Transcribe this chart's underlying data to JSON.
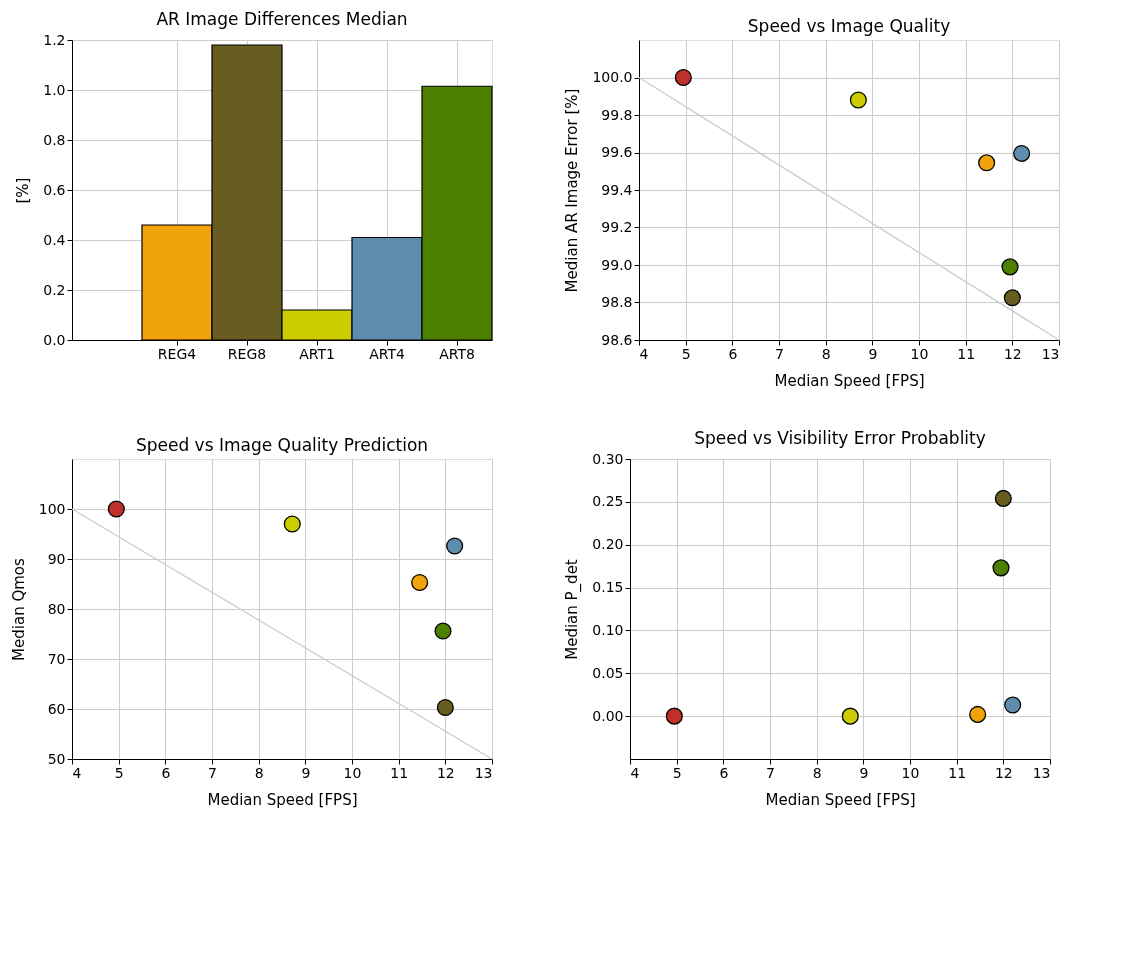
{
  "chart_data": [
    {
      "type": "bar",
      "title": "AR Image Differences Median",
      "ylabel": "[%]",
      "categories": [
        "REG4",
        "REG8",
        "ART1",
        "ART4",
        "ART8"
      ],
      "values": [
        0.46,
        1.18,
        0.12,
        0.41,
        1.015
      ],
      "colors": [
        "#f0a30a",
        "#675d21",
        "#cccc00",
        "#5e8cad",
        "#4e8000"
      ],
      "ylim": [
        0,
        1.2
      ],
      "yticks": [
        {
          "value": 0,
          "label": "0.0"
        },
        0.2,
        0.4,
        0.6,
        0.8,
        {
          "value": 1,
          "label": "1.0"
        },
        1.2
      ],
      "grid": true
    },
    {
      "type": "scatter",
      "title": "Speed vs Image Quality",
      "xlabel": "Median Speed [FPS]",
      "ylabel": "Median AR Image Error [%]",
      "xlim": [
        4,
        13
      ],
      "xticks": [
        4,
        5,
        6,
        7,
        8,
        9,
        10,
        11,
        12,
        13
      ],
      "ylim": [
        98.6,
        100.2
      ],
      "yticks": [
        98.6,
        98.8,
        {
          "value": 99,
          "label": "99.0"
        },
        99.2,
        99.4,
        99.6,
        99.8,
        {
          "value": 100,
          "label": "100.0"
        }
      ],
      "grid": true,
      "series": [
        {
          "type": "scatter",
          "marker": "circle",
          "x": [
            4.95,
            8.7,
            11.45,
            12.2,
            11.95,
            12.0
          ],
          "values": [
            100.0,
            99.88,
            99.545,
            99.595,
            98.99,
            98.825
          ],
          "colors": [
            "#c0302a",
            "#cccc00",
            "#f0a30a",
            "#5e8cad",
            "#4e8000",
            "#675d21"
          ]
        },
        {
          "type": "line",
          "marker": "none",
          "line_style": "solid",
          "x": [
            4,
            13
          ],
          "values": [
            100.0,
            98.6
          ],
          "color": "#cccccc"
        }
      ]
    },
    {
      "type": "scatter",
      "title": "Speed vs Image Quality Prediction",
      "xlabel": "Median Speed [FPS]",
      "ylabel": "Median Qmos",
      "xlim": [
        4,
        13
      ],
      "xticks": [
        4,
        5,
        6,
        7,
        8,
        9,
        10,
        11,
        12,
        13
      ],
      "ylim": [
        50,
        110
      ],
      "yticks": [
        50,
        60,
        70,
        80,
        90,
        100
      ],
      "grid": true,
      "series": [
        {
          "type": "scatter",
          "marker": "circle",
          "x": [
            4.95,
            8.72,
            11.45,
            12.2,
            11.95,
            12.0
          ],
          "values": [
            100,
            97,
            85.3,
            92.6,
            75.6,
            60.3
          ],
          "colors": [
            "#c0302a",
            "#cccc00",
            "#f0a30a",
            "#5e8cad",
            "#4e8000",
            "#675d21"
          ]
        },
        {
          "type": "line",
          "marker": "none",
          "line_style": "solid",
          "x": [
            4,
            13
          ],
          "values": [
            100,
            50
          ],
          "color": "#cccccc"
        }
      ]
    },
    {
      "type": "scatter",
      "title": "Speed vs Visibility Error Probablity",
      "xlabel": "Median Speed [FPS]",
      "ylabel": "Median P_det",
      "xlim": [
        4,
        13
      ],
      "xticks": [
        4,
        5,
        6,
        7,
        8,
        9,
        10,
        11,
        12,
        13
      ],
      "ylim": [
        -0.05,
        0.3
      ],
      "yticks": [
        {
          "value": 0,
          "label": "0.00"
        },
        {
          "value": 0.05,
          "label": "0.05"
        },
        {
          "value": 0.1,
          "label": "0.10"
        },
        {
          "value": 0.15,
          "label": "0.15"
        },
        {
          "value": 0.2,
          "label": "0.20"
        },
        {
          "value": 0.25,
          "label": "0.25"
        },
        {
          "value": 0.3,
          "label": "0.30"
        }
      ],
      "grid": true,
      "marker": "circle",
      "series": [
        {
          "type": "scatter",
          "x": [
            4.95,
            8.72,
            11.45,
            12.2,
            11.95,
            12.0
          ],
          "values": [
            0.0,
            0.0,
            0.002,
            0.013,
            0.173,
            0.254
          ],
          "colors": [
            "#c0302a",
            "#cccc00",
            "#f0a30a",
            "#5e8cad",
            "#4e8000",
            "#675d21"
          ]
        }
      ]
    }
  ]
}
